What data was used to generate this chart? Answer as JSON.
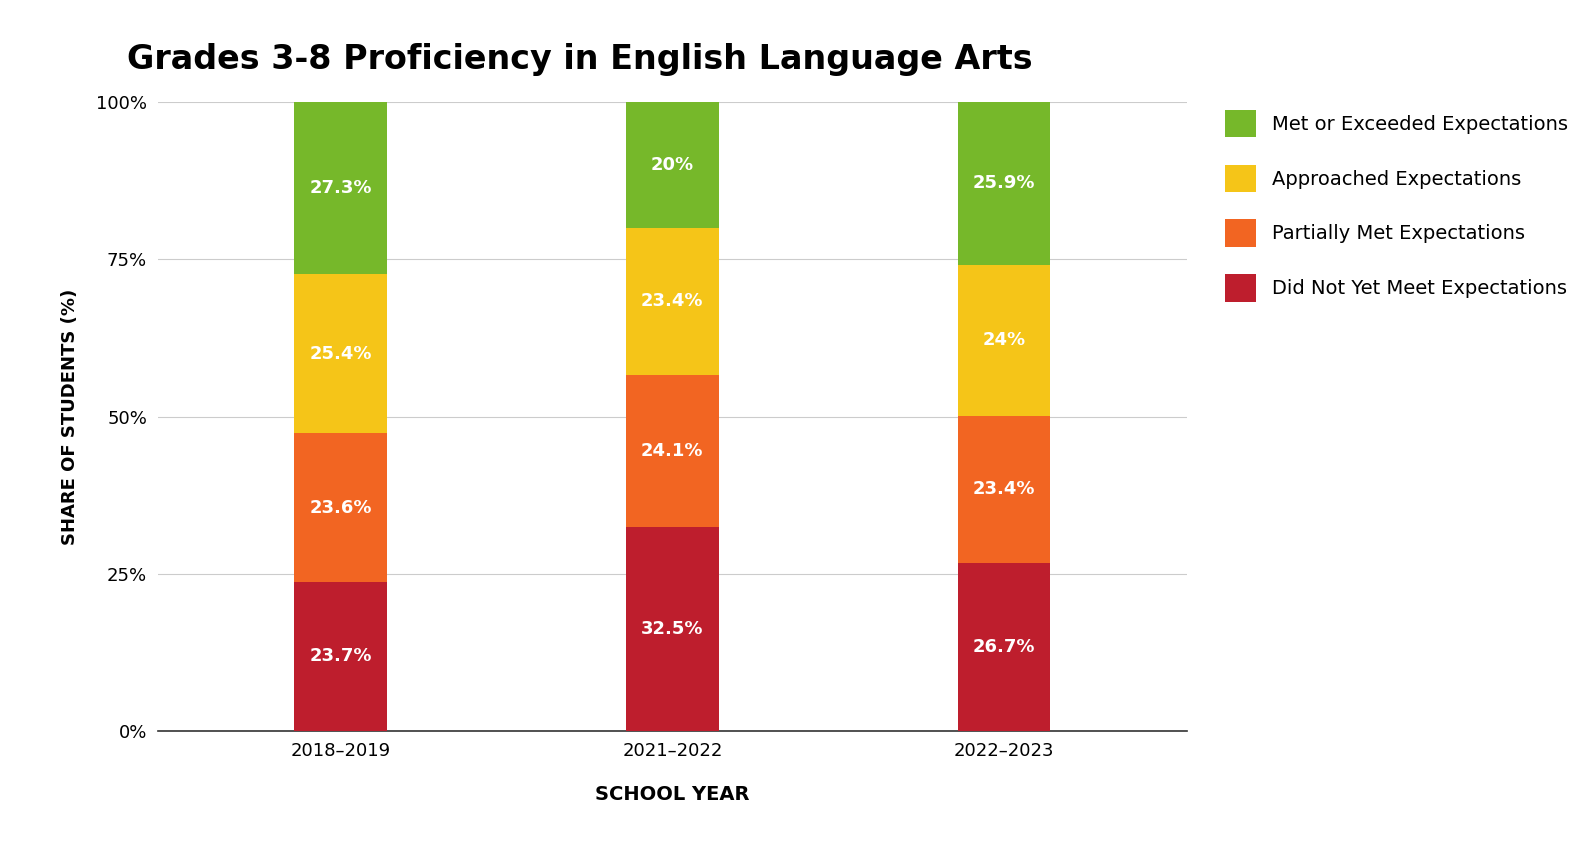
{
  "title": "Grades 3-8 Proficiency in English Language Arts",
  "xlabel": "SCHOOL YEAR",
  "ylabel": "SHARE OF STUDENTS (%)",
  "categories": [
    "2018–2019",
    "2021–2022",
    "2022–2023"
  ],
  "segments": {
    "Did Not Yet Meet Expectations": {
      "values": [
        23.7,
        32.5,
        26.7
      ],
      "color": "#be1e2d"
    },
    "Partially Met Expectations": {
      "values": [
        23.6,
        24.1,
        23.4
      ],
      "color": "#f26522"
    },
    "Approached Expectations": {
      "values": [
        25.4,
        23.4,
        24.0
      ],
      "color": "#f5c518"
    },
    "Met or Exceeded Expectations": {
      "values": [
        27.3,
        20.0,
        25.9
      ],
      "color": "#76b82a"
    }
  },
  "legend_order": [
    "Met or Exceeded Expectations",
    "Approached Expectations",
    "Partially Met Expectations",
    "Did Not Yet Meet Expectations"
  ],
  "value_labels": {
    "2018–2019": [
      "23.7%",
      "23.6%",
      "25.4%",
      "27.3%"
    ],
    "2021–2022": [
      "32.5%",
      "24.1%",
      "23.4%",
      "20%"
    ],
    "2022–2023": [
      "26.7%",
      "23.4%",
      "24%",
      "25.9%"
    ]
  },
  "ylim": [
    0,
    100
  ],
  "yticks": [
    0,
    25,
    50,
    75,
    100
  ],
  "ytick_labels": [
    "0%",
    "25%",
    "50%",
    "75%",
    "100%"
  ],
  "bar_width": 0.28,
  "title_fontsize": 24,
  "label_fontsize": 13,
  "tick_fontsize": 13,
  "legend_fontsize": 14,
  "value_label_fontsize": 13,
  "background_color": "#ffffff"
}
